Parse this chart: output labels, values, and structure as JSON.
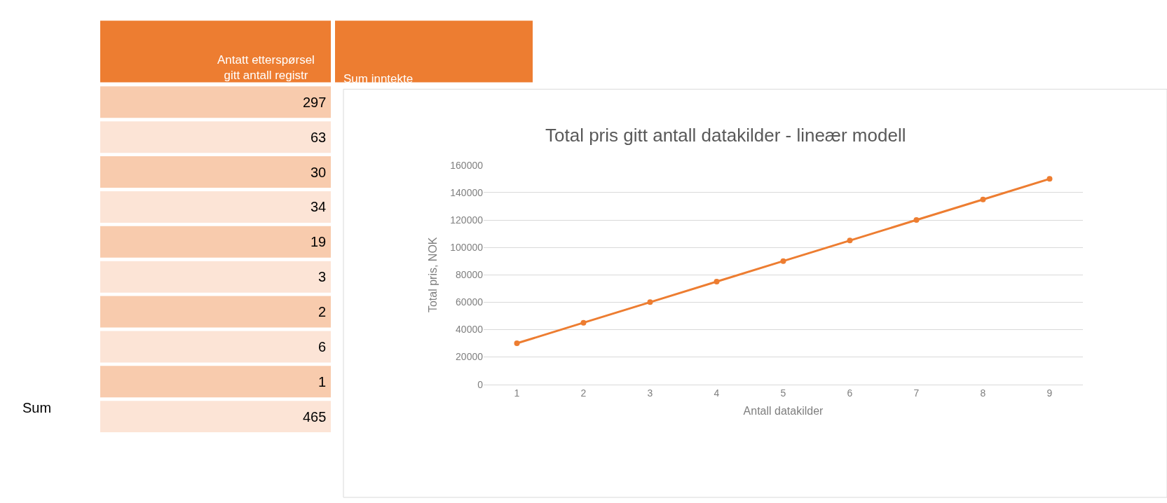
{
  "chart_data": [
    {
      "type": "other",
      "title": "Antatt etterspørsel gitt antall registr",
      "subtitle": "Sum inntekte",
      "categories": [
        null,
        null,
        null,
        null,
        null,
        null,
        null,
        null,
        null,
        "Sum"
      ],
      "values": [
        297,
        63,
        30,
        34,
        19,
        3,
        2,
        6,
        1,
        465
      ],
      "color": "#ed7d31",
      "data_labels": true,
      "colors": [
        "#f8cbad",
        "#fce4d6",
        "#f8cbad",
        "#fce4d6",
        "#f8cbad",
        "#fce4d6",
        "#f8cbad",
        "#fce4d6",
        "#f8cbad",
        "#fce4d6"
      ]
    },
    {
      "type": "line",
      "title": "Total pris gitt antall datakilder - lineær modell",
      "xlabel": "Antall datakilder",
      "ylabel": "Total pris, NOK",
      "categories": [
        "1",
        "2",
        "3",
        "4",
        "5",
        "6",
        "7",
        "8",
        "9"
      ],
      "series": [
        {
          "color": "#ed7d31",
          "values": [
            30000,
            45000,
            60000,
            75000,
            90000,
            105000,
            120000,
            135000,
            150000
          ]
        }
      ],
      "ylim": [
        0,
        160000
      ],
      "yticks": [
        0,
        20000,
        40000,
        60000,
        80000,
        100000,
        120000,
        140000,
        160000
      ],
      "grid": "y",
      "marker": "circle",
      "line_style": "solid"
    }
  ]
}
